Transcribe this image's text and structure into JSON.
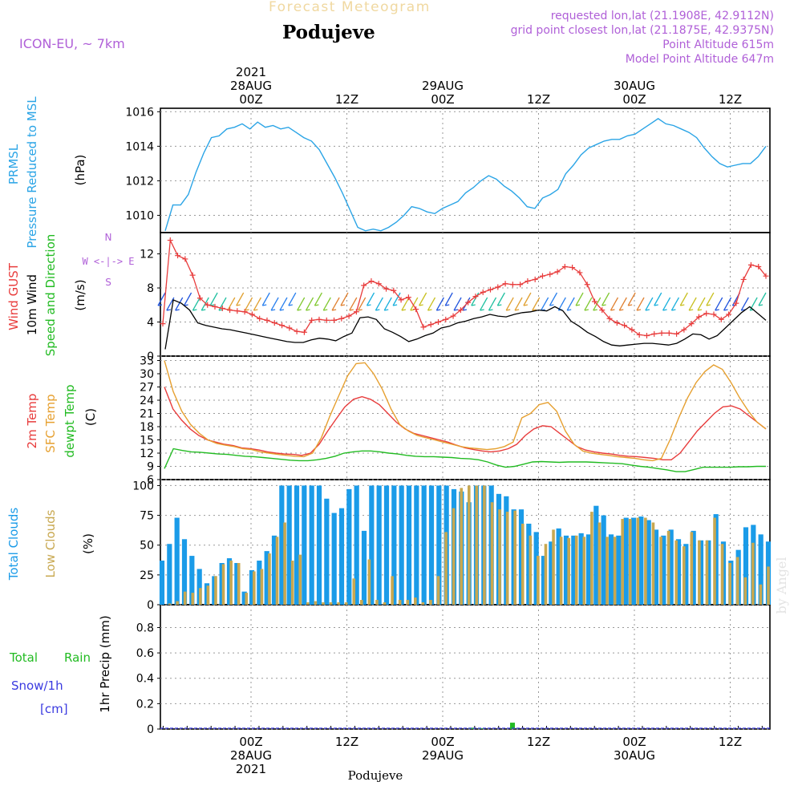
{
  "header": {
    "title": "Forecast Meteogram",
    "location": "Podujeve",
    "model": "ICON-EU, ~ 7km",
    "requested": "requested lon,lat (21.1908E, 42.9112N)",
    "gridpoint": "grid point closest lon,lat (21.1875E, 42.9375N)",
    "point_alt": "Point Altitude 615m",
    "model_alt": "Model Point Altitude 647m",
    "footer_location": "Podujeve",
    "watermark": "by Angel"
  },
  "time_axis": {
    "top_labels": [
      {
        "lines": [
          "2021",
          "28AUG",
          "00Z"
        ]
      },
      {
        "lines": [
          "12Z"
        ]
      },
      {
        "lines": [
          "29AUG",
          "00Z"
        ]
      },
      {
        "lines": [
          "12Z"
        ]
      },
      {
        "lines": [
          "30AUG",
          "00Z"
        ]
      },
      {
        "lines": [
          "12Z"
        ]
      }
    ],
    "bottom_labels": [
      {
        "lines": [
          "00Z",
          "28AUG",
          "2021"
        ]
      },
      {
        "lines": [
          "12Z"
        ]
      },
      {
        "lines": [
          "00Z",
          "29AUG"
        ]
      },
      {
        "lines": [
          "12Z"
        ]
      },
      {
        "lines": [
          "00Z",
          "30AUG"
        ]
      },
      {
        "lines": [
          "12Z"
        ]
      }
    ]
  },
  "colors": {
    "pressure": "#2aa4e6",
    "gust": "#e83c3c",
    "wind": "#000000",
    "green": "#22bb22",
    "sfc": "#e6a030",
    "total_clouds": "#1a9be8",
    "low_clouds": "#c8a850",
    "rain": "#22bb22",
    "snow": "#3a3ae0",
    "purple": "#b060d8",
    "title_gold": "#f0d8a0"
  },
  "panels": {
    "pressure": {
      "label1": "PRMSL",
      "label2": "Pressure Reduced to MSL",
      "unit": "(hPa)"
    },
    "wind": {
      "label1": "Wind GUST",
      "label2": "10m Wind",
      "label3": "Speed and Direction",
      "unit": "(m/s)",
      "compass_n": "N",
      "compass_mid": "W <-|-> E",
      "compass_s": "S"
    },
    "temp": {
      "label1": "2m Temp",
      "label2": "SFC Temp",
      "label3": "dewpt Temp",
      "unit": "(C)"
    },
    "clouds": {
      "label1": "Total Clouds",
      "label2": "Low Clouds",
      "unit": "(%)"
    },
    "precip": {
      "label1": "Total",
      "label1b": "Rain",
      "label2": "Snow/1h",
      "label3": "[cm]",
      "unit": "1hr Precip (mm)"
    }
  },
  "chart_data": [
    {
      "type": "line",
      "panel": "pressure",
      "ylim": [
        1009,
        1016.2
      ],
      "yticks": [
        1010,
        1012,
        1014,
        1016
      ],
      "series": [
        {
          "name": "PRMSL",
          "values": [
            1009.1,
            1010.6,
            1010.6,
            1011.2,
            1012.5,
            1013.6,
            1014.5,
            1014.6,
            1015.0,
            1015.1,
            1015.3,
            1015.0,
            1015.4,
            1015.1,
            1015.2,
            1015.0,
            1015.1,
            1014.8,
            1014.5,
            1014.3,
            1013.8,
            1013.0,
            1012.2,
            1011.3,
            1010.3,
            1009.3,
            1009.1,
            1009.2,
            1009.1,
            1009.3,
            1009.6,
            1010.0,
            1010.5,
            1010.4,
            1010.2,
            1010.1,
            1010.4,
            1010.6,
            1010.8,
            1011.3,
            1011.6,
            1012.0,
            1012.3,
            1012.1,
            1011.7,
            1011.4,
            1011.0,
            1010.5,
            1010.4,
            1011.0,
            1011.2,
            1011.5,
            1012.4,
            1012.9,
            1013.5,
            1013.9,
            1014.1,
            1014.3,
            1014.4,
            1014.4,
            1014.6,
            1014.7,
            1015.0,
            1015.3,
            1015.6,
            1015.3,
            1015.2,
            1015.0,
            1014.8,
            1014.5,
            1013.9,
            1013.4,
            1013.0,
            1012.8,
            1012.9,
            1013.0,
            1013.0,
            1013.4,
            1014.0
          ]
        }
      ]
    },
    {
      "type": "line",
      "panel": "wind",
      "ylim": [
        0,
        14.5
      ],
      "yticks": [
        0,
        4,
        8,
        12
      ],
      "series": [
        {
          "name": "Wind GUST",
          "values": [
            3.8,
            13.6,
            11.8,
            11.4,
            9.5,
            6.8,
            6.0,
            5.8,
            5.6,
            5.4,
            5.3,
            5.2,
            4.9,
            4.4,
            4.2,
            3.9,
            3.6,
            3.3,
            2.9,
            2.8,
            4.2,
            4.3,
            4.2,
            4.2,
            4.4,
            4.7,
            5.2,
            8.3,
            8.8,
            8.5,
            7.9,
            7.7,
            6.6,
            6.9,
            5.5,
            3.4,
            3.7,
            4.0,
            4.3,
            4.7,
            5.4,
            6.3,
            7.0,
            7.5,
            7.8,
            8.1,
            8.5,
            8.4,
            8.4,
            8.8,
            9.0,
            9.4,
            9.6,
            9.9,
            10.5,
            10.4,
            9.8,
            8.4,
            6.4,
            5.4,
            4.4,
            3.9,
            3.6,
            3.1,
            2.5,
            2.4,
            2.6,
            2.7,
            2.7,
            2.6,
            3.1,
            3.8,
            4.6,
            5.0,
            4.9,
            4.3,
            4.9,
            6.2,
            9.0,
            10.7,
            10.5,
            9.4
          ]
        },
        {
          "name": "10m Wind",
          "values": [
            0.8,
            6.6,
            6.2,
            5.4,
            3.9,
            3.6,
            3.4,
            3.2,
            3.1,
            2.9,
            2.7,
            2.5,
            2.3,
            2.1,
            1.9,
            1.7,
            1.6,
            1.6,
            1.9,
            2.1,
            2.0,
            1.8,
            2.3,
            2.7,
            4.5,
            4.6,
            4.3,
            3.2,
            2.8,
            2.3,
            1.7,
            2.0,
            2.4,
            2.7,
            3.3,
            3.5,
            3.9,
            4.1,
            4.4,
            4.6,
            4.9,
            4.7,
            4.6,
            4.9,
            5.1,
            5.2,
            5.4,
            5.3,
            5.8,
            5.3,
            4.1,
            3.5,
            2.8,
            2.3,
            1.7,
            1.3,
            1.2,
            1.3,
            1.4,
            1.5,
            1.5,
            1.4,
            1.3,
            1.5,
            2.0,
            2.6,
            2.5,
            2.0,
            2.4,
            3.3,
            4.2,
            5.1,
            5.8,
            5.0,
            4.2
          ]
        }
      ]
    },
    {
      "type": "line",
      "panel": "temp",
      "ylim": [
        6,
        34
      ],
      "yticks": [
        6,
        9,
        12,
        15,
        18,
        21,
        24,
        27,
        30,
        33
      ],
      "series": [
        {
          "name": "2m Temp",
          "values": [
            27,
            22,
            19.5,
            17.5,
            16,
            15,
            14.5,
            14,
            13.7,
            13.2,
            13,
            12.7,
            12.3,
            12,
            11.8,
            11.7,
            11.5,
            12,
            14,
            17,
            19.8,
            22.5,
            24.2,
            24.8,
            24.2,
            23,
            21,
            19,
            17.5,
            16.5,
            16,
            15.5,
            15,
            14.5,
            13.8,
            13.2,
            12.8,
            12.5,
            12.3,
            12.5,
            13,
            14,
            16,
            17.5,
            18.2,
            18,
            16.5,
            15,
            13.5,
            12.7,
            12.3,
            12,
            11.8,
            11.5,
            11.3,
            11.2,
            11,
            10.8,
            10.5,
            10.5,
            12,
            14.5,
            17,
            19,
            21,
            22.5,
            22.7,
            22,
            20.5,
            19,
            17.5
          ]
        },
        {
          "name": "SFC Temp",
          "values": [
            33,
            26,
            21.5,
            18.5,
            16.5,
            15,
            14.2,
            13.8,
            13.5,
            13,
            12.8,
            12.3,
            12,
            11.7,
            11.5,
            11.3,
            11.2,
            12,
            15.5,
            20.5,
            25,
            29.5,
            32.3,
            32.5,
            30,
            26.5,
            22,
            18.5,
            17,
            16,
            15.5,
            15,
            14.5,
            14,
            13.5,
            13.2,
            13,
            12.8,
            13,
            13.5,
            14.5,
            20,
            21,
            23,
            23.5,
            21.5,
            17,
            14,
            12.5,
            12,
            11.7,
            11.5,
            11.2,
            11,
            10.8,
            10.5,
            10.3,
            10.8,
            15,
            20,
            24.5,
            28,
            30.5,
            32,
            31,
            28,
            24.5,
            21.5,
            19,
            17.5
          ]
        },
        {
          "name": "dewpt Temp",
          "values": [
            8.5,
            13,
            12.6,
            12.3,
            12.2,
            12,
            11.8,
            11.7,
            11.5,
            11.3,
            11.2,
            11,
            10.8,
            10.6,
            10.4,
            10.3,
            10.3,
            10.5,
            10.8,
            11.3,
            12,
            12.3,
            12.5,
            12.5,
            12.3,
            12,
            11.8,
            11.5,
            11.3,
            11.2,
            11.2,
            11.1,
            11,
            10.8,
            10.7,
            10.5,
            10,
            9.3,
            8.8,
            9,
            9.5,
            10,
            10.1,
            10,
            9.9,
            10,
            10,
            10,
            9.9,
            9.8,
            9.7,
            9.6,
            9.3,
            9,
            8.8,
            8.5,
            8.2,
            7.8,
            7.8,
            8.3,
            8.8,
            8.8,
            8.8,
            8.8,
            8.9,
            8.9,
            9,
            9
          ]
        }
      ]
    },
    {
      "type": "bar",
      "panel": "clouds",
      "ylim": [
        0,
        105
      ],
      "yticks": [
        0,
        25,
        50,
        75,
        100
      ],
      "series": [
        {
          "name": "Total Clouds",
          "values": [
            37,
            51,
            73,
            55,
            41,
            30,
            18,
            24,
            35,
            39,
            35,
            11,
            29,
            37,
            45,
            58,
            100,
            100,
            100,
            100,
            100,
            100,
            89,
            77,
            81,
            97,
            100,
            62,
            100,
            100,
            100,
            100,
            100,
            100,
            100,
            100,
            100,
            100,
            100,
            97,
            95,
            86,
            100,
            100,
            100,
            93,
            91,
            80,
            80,
            68,
            61,
            41,
            53,
            64,
            58,
            58,
            60,
            59,
            83,
            75,
            59,
            58,
            73,
            73,
            74,
            71,
            63,
            58,
            63,
            55,
            51,
            62,
            54,
            54,
            76,
            53,
            37,
            46,
            65,
            67,
            59,
            53
          ]
        },
        {
          "name": "Low Clouds",
          "values": [
            0,
            1,
            3,
            11,
            10,
            14,
            16,
            24,
            34,
            37,
            35,
            10,
            28,
            30,
            43,
            57,
            69,
            37,
            42,
            2,
            3,
            2,
            2,
            2,
            2,
            22,
            4,
            38,
            4,
            2,
            24,
            4,
            4,
            6,
            2,
            4,
            24,
            61,
            81,
            98,
            100,
            100,
            100,
            86,
            80,
            78,
            79,
            68,
            58,
            41,
            51,
            63,
            57,
            56,
            58,
            57,
            78,
            69,
            57,
            57,
            72,
            72,
            73,
            73,
            69,
            57,
            62,
            54,
            49,
            61,
            54,
            54,
            73,
            51,
            35,
            40,
            23,
            52,
            17,
            32
          ]
        }
      ]
    },
    {
      "type": "bar",
      "panel": "precip",
      "ylim": [
        0,
        0.98
      ],
      "yticks": [
        0,
        0.2,
        0.4,
        0.6,
        0.8
      ],
      "series": [
        {
          "name": "Total Rain",
          "values": [
            0.01,
            0.005,
            0.05
          ]
        },
        {
          "name": "Snow/1h",
          "values": []
        }
      ]
    }
  ]
}
